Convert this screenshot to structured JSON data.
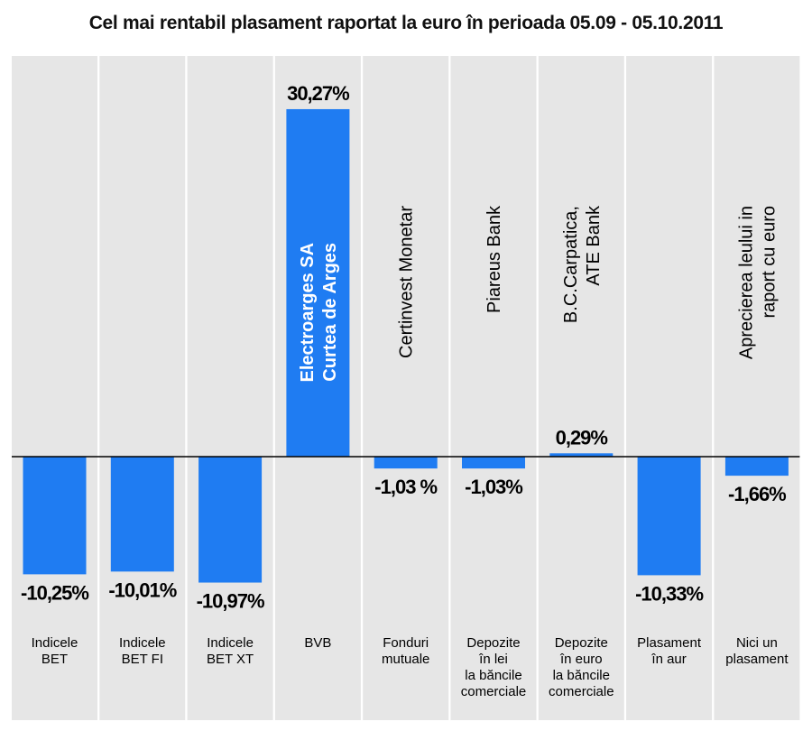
{
  "chart_data": {
    "type": "bar",
    "title": "Cel mai rentabil plasament raportat la euro în perioada 05.09 - 05.10.2011",
    "colors": {
      "bar": "#1f7cf2",
      "column_bg": "#e6e6e6",
      "axis": "#000000"
    },
    "ylim": [
      -12,
      32
    ],
    "grid": false,
    "legend": "none",
    "categories": [
      {
        "label_lines": [
          "Indicele",
          "BET"
        ],
        "sub_label_lines": [],
        "value": -10.25,
        "value_label": "-10,25%"
      },
      {
        "label_lines": [
          "Indicele",
          "BET FI"
        ],
        "sub_label_lines": [],
        "value": -10.01,
        "value_label": "-10,01%"
      },
      {
        "label_lines": [
          "Indicele",
          "BET XT"
        ],
        "sub_label_lines": [],
        "value": -10.97,
        "value_label": "-10,97%"
      },
      {
        "label_lines": [
          "BVB"
        ],
        "sub_label_lines": [
          "Electroarges SA",
          "Curtea de Arges"
        ],
        "value": 30.27,
        "value_label": "30,27%"
      },
      {
        "label_lines": [
          "Fonduri",
          "mutuale"
        ],
        "sub_label_lines": [
          "Certinvest Monetar"
        ],
        "value": -1.03,
        "value_label": "-1,03 %"
      },
      {
        "label_lines": [
          "Depozite",
          "în lei",
          "la băncile",
          "comerciale"
        ],
        "sub_label_lines": [
          "Piareus Bank"
        ],
        "value": -1.03,
        "value_label": "-1,03%"
      },
      {
        "label_lines": [
          "Depozite",
          "în euro",
          "la băncile",
          "comerciale"
        ],
        "sub_label_lines": [
          "B.C.Carpatica,",
          "ATE Bank"
        ],
        "value": 0.29,
        "value_label": "0,29%"
      },
      {
        "label_lines": [
          "Plasament",
          "în aur"
        ],
        "sub_label_lines": [],
        "value": -10.33,
        "value_label": "-10,33%"
      },
      {
        "label_lines": [
          "Nici un",
          "plasament"
        ],
        "sub_label_lines": [
          "Aprecierea leului in",
          "raport cu euro"
        ],
        "value": -1.66,
        "value_label": "-1,66%"
      }
    ]
  }
}
